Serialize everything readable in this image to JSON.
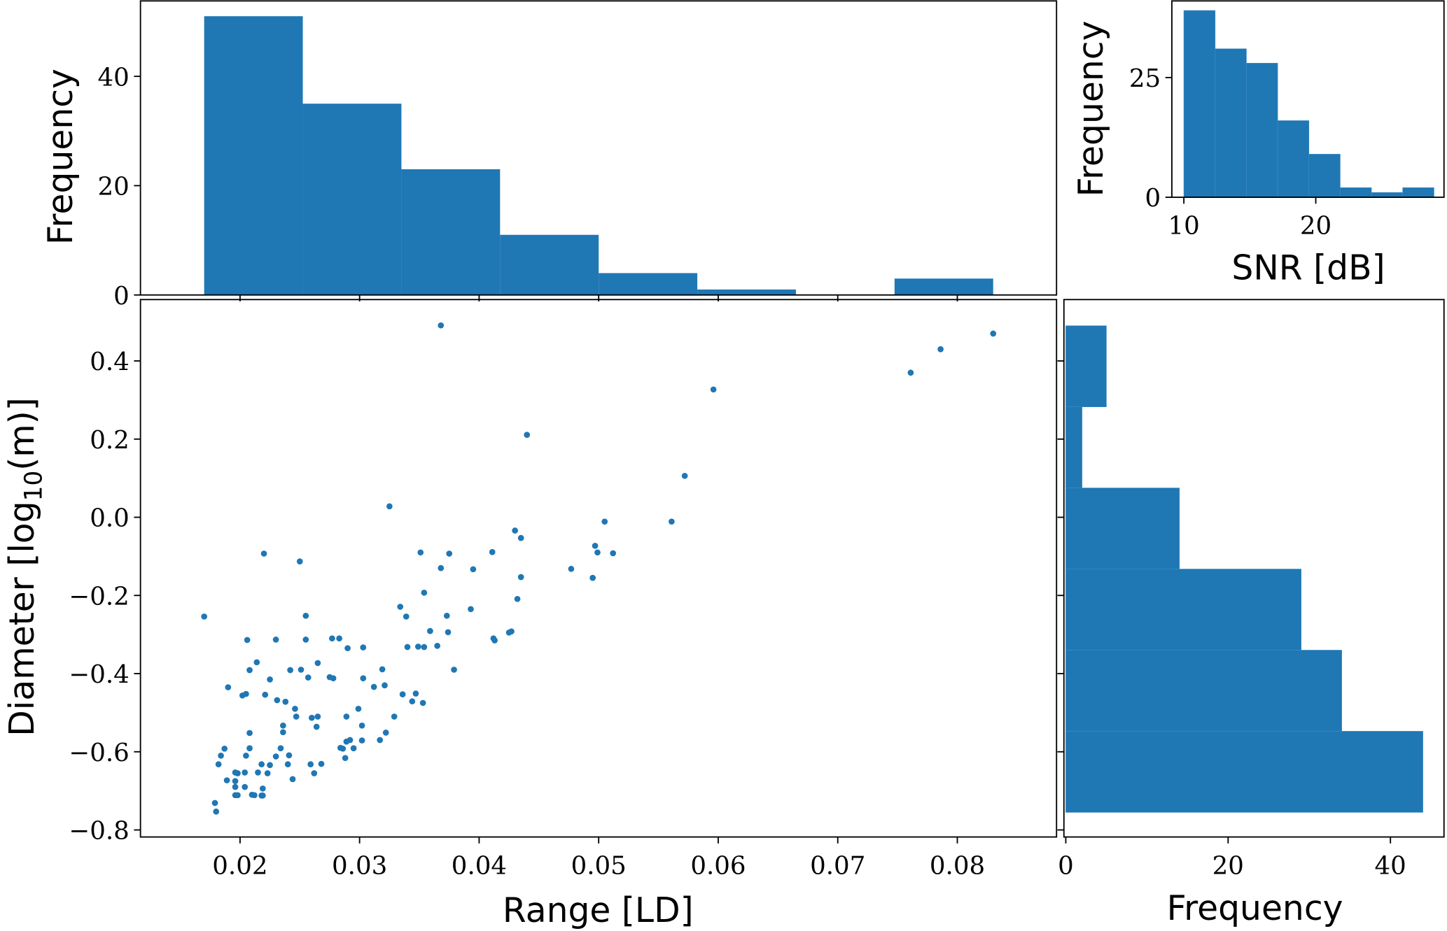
{
  "chart_data": [
    {
      "id": "range_hist",
      "type": "bar",
      "title": "",
      "xlabel": "",
      "ylabel": "Frequency",
      "bin_edges": [
        0.017,
        0.02525,
        0.0335,
        0.04175,
        0.05,
        0.05825,
        0.0665,
        0.07475,
        0.083
      ],
      "values": [
        51,
        35,
        23,
        11,
        4,
        1,
        0,
        3
      ],
      "xlim": [
        0.01167,
        0.0883
      ],
      "ylim": [
        0,
        53.8
      ],
      "yticks": [
        {
          "v": 0,
          "label": "0"
        },
        {
          "v": 20,
          "label": "20"
        },
        {
          "v": 40,
          "label": "40"
        }
      ],
      "color": "#1f77b4"
    },
    {
      "id": "snr_hist",
      "type": "bar",
      "xlabel": "SNR [dB]",
      "ylabel": "Frequency",
      "bin_edges": [
        10.0,
        12.37,
        14.74,
        17.11,
        19.48,
        21.85,
        24.22,
        26.59,
        28.96
      ],
      "values": [
        39,
        31,
        28,
        16,
        9,
        2,
        1,
        2
      ],
      "xlim": [
        9.09,
        29.72
      ],
      "ylim": [
        0,
        41
      ],
      "xticks": [
        {
          "v": 10,
          "label": "10"
        },
        {
          "v": 20,
          "label": "20"
        }
      ],
      "yticks": [
        {
          "v": 0,
          "label": "0"
        },
        {
          "v": 25,
          "label": "25"
        }
      ],
      "color": "#1f77b4"
    },
    {
      "id": "scatter",
      "type": "scatter",
      "xlabel": "Range [LD]",
      "ylabel": {
        "pre": "Diameter [log",
        "sub": "10",
        "post": "(m)]"
      },
      "xlim": [
        0.01167,
        0.0883
      ],
      "ylim": [
        -0.818,
        0.557
      ],
      "xticks": [
        {
          "v": 0.02,
          "label": "0.02"
        },
        {
          "v": 0.03,
          "label": "0.03"
        },
        {
          "v": 0.04,
          "label": "0.04"
        },
        {
          "v": 0.05,
          "label": "0.05"
        },
        {
          "v": 0.06,
          "label": "0.06"
        },
        {
          "v": 0.07,
          "label": "0.07"
        },
        {
          "v": 0.08,
          "label": "0.08"
        }
      ],
      "yticks": [
        {
          "v": 0.4,
          "label": "0.4"
        },
        {
          "v": 0.2,
          "label": "0.2"
        },
        {
          "v": 0.0,
          "label": "0.0"
        },
        {
          "v": -0.2,
          "label": "−0.2"
        },
        {
          "v": -0.4,
          "label": "−0.4"
        },
        {
          "v": -0.6,
          "label": "−0.6"
        },
        {
          "v": -0.8,
          "label": "−0.8"
        }
      ],
      "color": "#1f77b4",
      "points": [
        [
          0.017,
          -0.254
        ],
        [
          0.0255,
          -0.252
        ],
        [
          0.0354,
          -0.193
        ],
        [
          0.0334,
          -0.229
        ],
        [
          0.0339,
          -0.254
        ],
        [
          0.0373,
          -0.252
        ],
        [
          0.0393,
          -0.235
        ],
        [
          0.0359,
          -0.291
        ],
        [
          0.0374,
          -0.294
        ],
        [
          0.0206,
          -0.314
        ],
        [
          0.023,
          -0.313
        ],
        [
          0.0255,
          -0.313
        ],
        [
          0.0277,
          -0.31
        ],
        [
          0.0283,
          -0.31
        ],
        [
          0.029,
          -0.335
        ],
        [
          0.0303,
          -0.333
        ],
        [
          0.034,
          -0.332
        ],
        [
          0.0349,
          -0.331
        ],
        [
          0.0354,
          -0.332
        ],
        [
          0.0365,
          -0.329
        ],
        [
          0.0379,
          -0.39
        ],
        [
          0.0214,
          -0.371
        ],
        [
          0.0208,
          -0.391
        ],
        [
          0.0225,
          -0.415
        ],
        [
          0.0242,
          -0.391
        ],
        [
          0.0251,
          -0.39
        ],
        [
          0.0265,
          -0.373
        ],
        [
          0.0257,
          -0.41
        ],
        [
          0.0275,
          -0.409
        ],
        [
          0.0278,
          -0.412
        ],
        [
          0.0303,
          -0.412
        ],
        [
          0.0319,
          -0.389
        ],
        [
          0.0312,
          -0.434
        ],
        [
          0.0321,
          -0.43
        ],
        [
          0.0336,
          -0.453
        ],
        [
          0.0347,
          -0.451
        ],
        [
          0.0344,
          -0.471
        ],
        [
          0.0353,
          -0.475
        ],
        [
          0.019,
          -0.435
        ],
        [
          0.0202,
          -0.456
        ],
        [
          0.0205,
          -0.452
        ],
        [
          0.0221,
          -0.454
        ],
        [
          0.0231,
          -0.468
        ],
        [
          0.0238,
          -0.472
        ],
        [
          0.0246,
          -0.49
        ],
        [
          0.0247,
          -0.51
        ],
        [
          0.026,
          -0.513
        ],
        [
          0.0265,
          -0.51
        ],
        [
          0.0264,
          -0.536
        ],
        [
          0.0289,
          -0.51
        ],
        [
          0.0299,
          -0.49
        ],
        [
          0.0329,
          -0.51
        ],
        [
          0.0302,
          -0.533
        ],
        [
          0.0322,
          -0.551
        ],
        [
          0.0317,
          -0.57
        ],
        [
          0.0302,
          -0.571
        ],
        [
          0.0292,
          -0.57
        ],
        [
          0.0289,
          -0.574
        ],
        [
          0.0284,
          -0.59
        ],
        [
          0.0286,
          -0.592
        ],
        [
          0.0295,
          -0.591
        ],
        [
          0.0288,
          -0.616
        ],
        [
          0.0236,
          -0.533
        ],
        [
          0.0236,
          -0.55
        ],
        [
          0.0208,
          -0.552
        ],
        [
          0.0187,
          -0.592
        ],
        [
          0.0208,
          -0.591
        ],
        [
          0.0234,
          -0.591
        ],
        [
          0.0184,
          -0.61
        ],
        [
          0.0205,
          -0.61
        ],
        [
          0.023,
          -0.612
        ],
        [
          0.0241,
          -0.609
        ],
        [
          0.0182,
          -0.632
        ],
        [
          0.0218,
          -0.632
        ],
        [
          0.0225,
          -0.634
        ],
        [
          0.024,
          -0.632
        ],
        [
          0.0259,
          -0.632
        ],
        [
          0.0268,
          -0.631
        ],
        [
          0.0262,
          -0.655
        ],
        [
          0.0196,
          -0.653
        ],
        [
          0.0198,
          -0.655
        ],
        [
          0.0204,
          -0.653
        ],
        [
          0.0215,
          -0.653
        ],
        [
          0.0223,
          -0.655
        ],
        [
          0.0244,
          -0.67
        ],
        [
          0.0189,
          -0.673
        ],
        [
          0.0196,
          -0.675
        ],
        [
          0.0196,
          -0.69
        ],
        [
          0.0204,
          -0.69
        ],
        [
          0.0219,
          -0.694
        ],
        [
          0.0196,
          -0.711
        ],
        [
          0.0198,
          -0.711
        ],
        [
          0.021,
          -0.71
        ],
        [
          0.0212,
          -0.711
        ],
        [
          0.0218,
          -0.712
        ],
        [
          0.0219,
          -0.712
        ],
        [
          0.0179,
          -0.731
        ],
        [
          0.018,
          -0.753
        ],
        [
          0.0368,
          0.491
        ],
        [
          0.0596,
          0.327
        ],
        [
          0.044,
          0.211
        ],
        [
          0.0572,
          0.106
        ],
        [
          0.0325,
          0.028
        ],
        [
          0.0505,
          -0.011
        ],
        [
          0.0561,
          -0.011
        ],
        [
          0.043,
          -0.034
        ],
        [
          0.0435,
          -0.053
        ],
        [
          0.0497,
          -0.073
        ],
        [
          0.0499,
          -0.09
        ],
        [
          0.0512,
          -0.092
        ],
        [
          0.022,
          -0.093
        ],
        [
          0.025,
          -0.113
        ],
        [
          0.0351,
          -0.09
        ],
        [
          0.0375,
          -0.093
        ],
        [
          0.0411,
          -0.089
        ],
        [
          0.0368,
          -0.13
        ],
        [
          0.0395,
          -0.133
        ],
        [
          0.0477,
          -0.132
        ],
        [
          0.0435,
          -0.153
        ],
        [
          0.0495,
          -0.155
        ],
        [
          0.0432,
          -0.209
        ],
        [
          0.0412,
          -0.31
        ],
        [
          0.0413,
          -0.315
        ],
        [
          0.0425,
          -0.295
        ],
        [
          0.0427,
          -0.292
        ],
        [
          0.0761,
          0.37
        ],
        [
          0.0786,
          0.43
        ],
        [
          0.083,
          0.47
        ]
      ]
    },
    {
      "id": "diameter_hist",
      "type": "bar",
      "orientation": "horizontal",
      "xlabel": "Frequency",
      "bin_edges": [
        -0.755,
        -0.5475,
        -0.34,
        -0.1325,
        0.075,
        0.2825,
        0.49
      ],
      "values": [
        44,
        34,
        29,
        14,
        2,
        5
      ],
      "xlim": [
        -0.23,
        46.6
      ],
      "ylim": [
        -0.818,
        0.557
      ],
      "xticks": [
        {
          "v": 0,
          "label": "0"
        },
        {
          "v": 20,
          "label": "20"
        },
        {
          "v": 40,
          "label": "40"
        }
      ],
      "color": "#1f77b4"
    }
  ]
}
